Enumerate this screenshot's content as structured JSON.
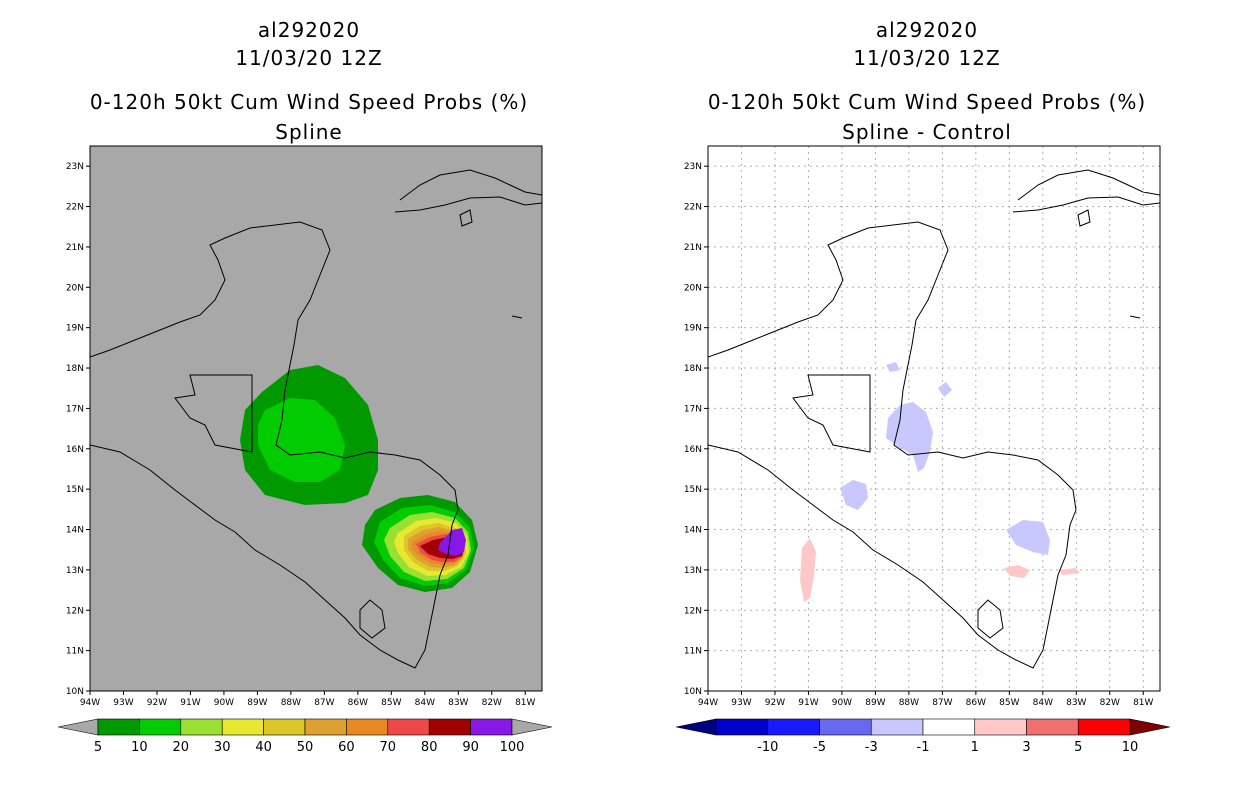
{
  "panels": [
    {
      "id": "left",
      "title_line1": "al292020",
      "title_line2": "11/03/20 12Z",
      "title_line3": "0-120h 50kt Cum Wind Speed Probs (%)",
      "title_line4": "Spline",
      "background": "#a8a8a8"
    },
    {
      "id": "right",
      "title_line1": "al292020",
      "title_line2": "11/03/20 12Z",
      "title_line3": "0-120h 50kt Cum Wind Speed Probs (%)",
      "title_line4": "Spline - Control",
      "background": "#ffffff"
    }
  ],
  "chart_data": [
    {
      "type": "heatmap",
      "title": "0-120h 50kt Cum Wind Speed Probs (%) Spline",
      "xlabel": "",
      "ylabel": "",
      "xlim": [
        -94,
        -80.5
      ],
      "ylim": [
        10,
        23.5
      ],
      "x_ticks": [
        "94W",
        "93W",
        "92W",
        "91W",
        "90W",
        "89W",
        "88W",
        "87W",
        "86W",
        "85W",
        "84W",
        "83W",
        "82W",
        "81W"
      ],
      "y_ticks": [
        "10N",
        "11N",
        "12N",
        "13N",
        "14N",
        "15N",
        "16N",
        "17N",
        "18N",
        "19N",
        "20N",
        "21N",
        "22N",
        "23N"
      ],
      "grid": false,
      "colorbar": {
        "labels": [
          "5",
          "10",
          "20",
          "30",
          "40",
          "50",
          "60",
          "70",
          "80",
          "90",
          "100"
        ],
        "colors": [
          "#009900",
          "#00cc00",
          "#99e033",
          "#e8e830",
          "#dcc628",
          "#dea030",
          "#e88a24",
          "#f04848",
          "#a00000",
          "#8818e8"
        ],
        "under_color": "#a8a8a8",
        "over_color": "#a8a8a8"
      },
      "features": [
        {
          "name": "Honduras/Guatemala band",
          "center": [
            -87.7,
            16.2
          ],
          "max_value_range": "10-20"
        },
        {
          "name": "Nicaragua coast core",
          "center": [
            -83.3,
            13.6
          ],
          "max_value_range": "90-100"
        }
      ]
    },
    {
      "type": "heatmap",
      "title": "0-120h 50kt Cum Wind Speed Probs (%) Spline - Control",
      "xlabel": "",
      "ylabel": "",
      "xlim": [
        -94,
        -80.5
      ],
      "ylim": [
        10,
        23.5
      ],
      "x_ticks": [
        "94W",
        "93W",
        "92W",
        "91W",
        "90W",
        "89W",
        "88W",
        "87W",
        "86W",
        "85W",
        "84W",
        "83W",
        "82W",
        "81W"
      ],
      "y_ticks": [
        "10N",
        "11N",
        "12N",
        "13N",
        "14N",
        "15N",
        "16N",
        "17N",
        "18N",
        "19N",
        "20N",
        "21N",
        "22N",
        "23N"
      ],
      "grid": true,
      "colorbar": {
        "labels": [
          "-10",
          "-5",
          "-3",
          "-1",
          "1",
          "3",
          "5",
          "10"
        ],
        "colors": [
          "#0000cc",
          "#1a1aff",
          "#6868f0",
          "#c8c8ff",
          "#ffffff",
          "#ffc8c8",
          "#f07070",
          "#ff0000"
        ],
        "under_color": "#000080",
        "over_color": "#800000"
      },
      "features": [
        {
          "name": "negative diff near Belize/Honduras",
          "center": [
            -87.9,
            16.4
          ],
          "value_range": "-3 to -1"
        },
        {
          "name": "negative diff eastern Nicaragua",
          "center": [
            -84.7,
            13.8
          ],
          "value_range": "-3 to -1"
        },
        {
          "name": "positive diff Pacific",
          "center": [
            -91,
            13
          ],
          "value_range": "1 to 3"
        },
        {
          "name": "positive diff Nicaragua coast",
          "center": [
            -84.7,
            13
          ],
          "value_range": "1 to 3"
        }
      ]
    }
  ]
}
